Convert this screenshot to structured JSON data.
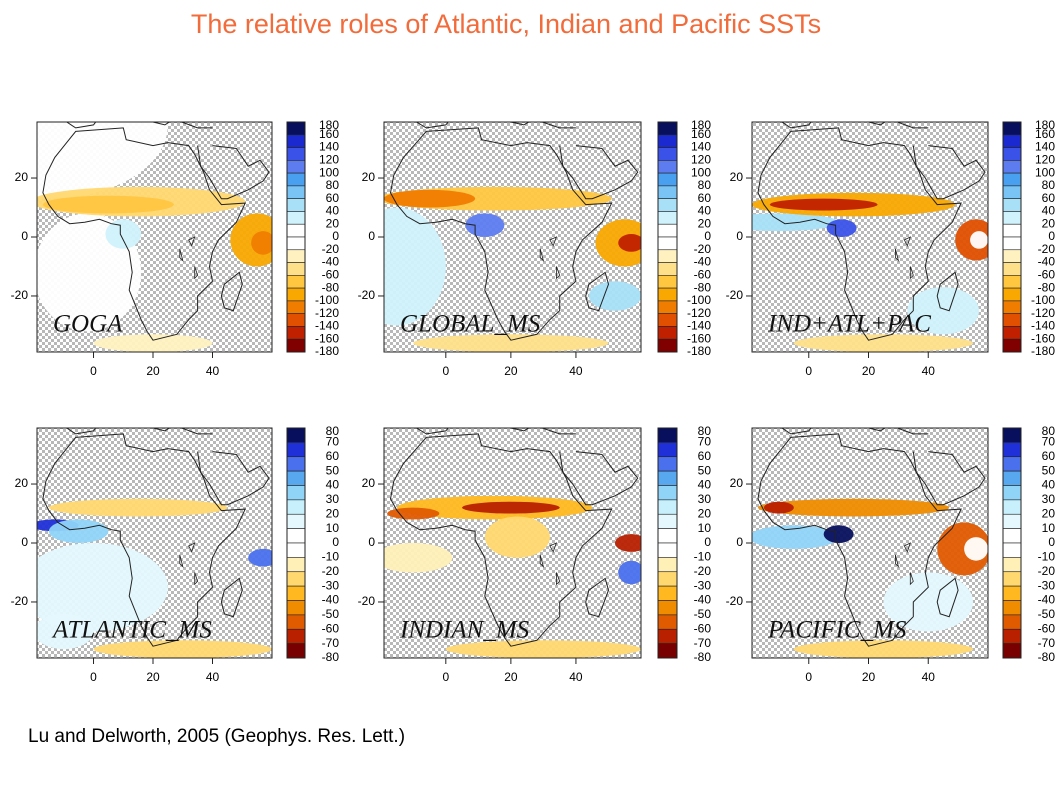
{
  "title": "The relative roles of Atlantic, Indian and Pacific SSTs",
  "citation": "Lu and Delworth, 2005 (Geophys. Res. Lett.)",
  "palettes": {
    "wide": [
      "#08105e",
      "#1a2ad0",
      "#3b52e8",
      "#5d7cf0",
      "#4aa0f0",
      "#79c4f4",
      "#a8e0f8",
      "#d0f2fc",
      "#ffffff",
      "#ffffff",
      "#fff2c0",
      "#ffe08a",
      "#ffc640",
      "#f8a800",
      "#f07c00",
      "#e05000",
      "#c02000",
      "#800000"
    ],
    "narrow": [
      "#08105e",
      "#2030d8",
      "#4a70ee",
      "#58a8f0",
      "#90d4f8",
      "#c8f0fc",
      "#e4f8fd",
      "#ffffff",
      "#ffffff",
      "#fff0b8",
      "#ffd870",
      "#ffb820",
      "#f08c00",
      "#e05a00",
      "#b82000",
      "#780000"
    ]
  },
  "panels": [
    {
      "label": "GOGA",
      "lat_ticks": [
        20,
        0,
        -20
      ],
      "lon_ticks": [
        0,
        20,
        40
      ],
      "colorbar": [
        180,
        160,
        140,
        120,
        100,
        80,
        60,
        40,
        20,
        0,
        -20,
        -40,
        -60,
        -80,
        -100,
        -120,
        -140,
        -160,
        -180
      ]
    },
    {
      "label": "GLOBAL_MS",
      "lat_ticks": [
        20,
        0,
        -20
      ],
      "lon_ticks": [
        0,
        20,
        40
      ],
      "colorbar": [
        180,
        160,
        140,
        120,
        100,
        80,
        60,
        40,
        20,
        0,
        -20,
        -40,
        -60,
        -80,
        -100,
        -120,
        -140,
        -160,
        -180
      ]
    },
    {
      "label": "IND+ATL+PAC",
      "lat_ticks": [
        20,
        0,
        -20
      ],
      "lon_ticks": [
        0,
        20,
        40
      ],
      "colorbar": [
        180,
        160,
        140,
        120,
        100,
        80,
        60,
        40,
        20,
        0,
        -20,
        -40,
        -60,
        -80,
        -100,
        -120,
        -140,
        -160,
        -180
      ]
    },
    {
      "label": "ATLANTIC_MS",
      "lat_ticks": [
        20,
        0,
        -20
      ],
      "lon_ticks": [
        0,
        20,
        40
      ],
      "colorbar": [
        80,
        70,
        60,
        50,
        40,
        30,
        20,
        10,
        0,
        -10,
        -20,
        -30,
        -40,
        -50,
        -60,
        -70,
        -80
      ]
    },
    {
      "label": "INDIAN_MS",
      "lat_ticks": [
        20,
        0,
        -20
      ],
      "lon_ticks": [
        0,
        20,
        40
      ],
      "colorbar": [
        80,
        70,
        60,
        50,
        40,
        30,
        20,
        10,
        0,
        -10,
        -20,
        -30,
        -40,
        -50,
        -60,
        -70,
        -80
      ]
    },
    {
      "label": "PACIFIC_MS",
      "lat_ticks": [
        20,
        0,
        -20
      ],
      "lon_ticks": [
        0,
        20,
        40
      ],
      "colorbar": [
        80,
        70,
        60,
        50,
        40,
        30,
        20,
        10,
        0,
        -10,
        -20,
        -30,
        -40,
        -50,
        -60,
        -70,
        -80
      ]
    }
  ]
}
